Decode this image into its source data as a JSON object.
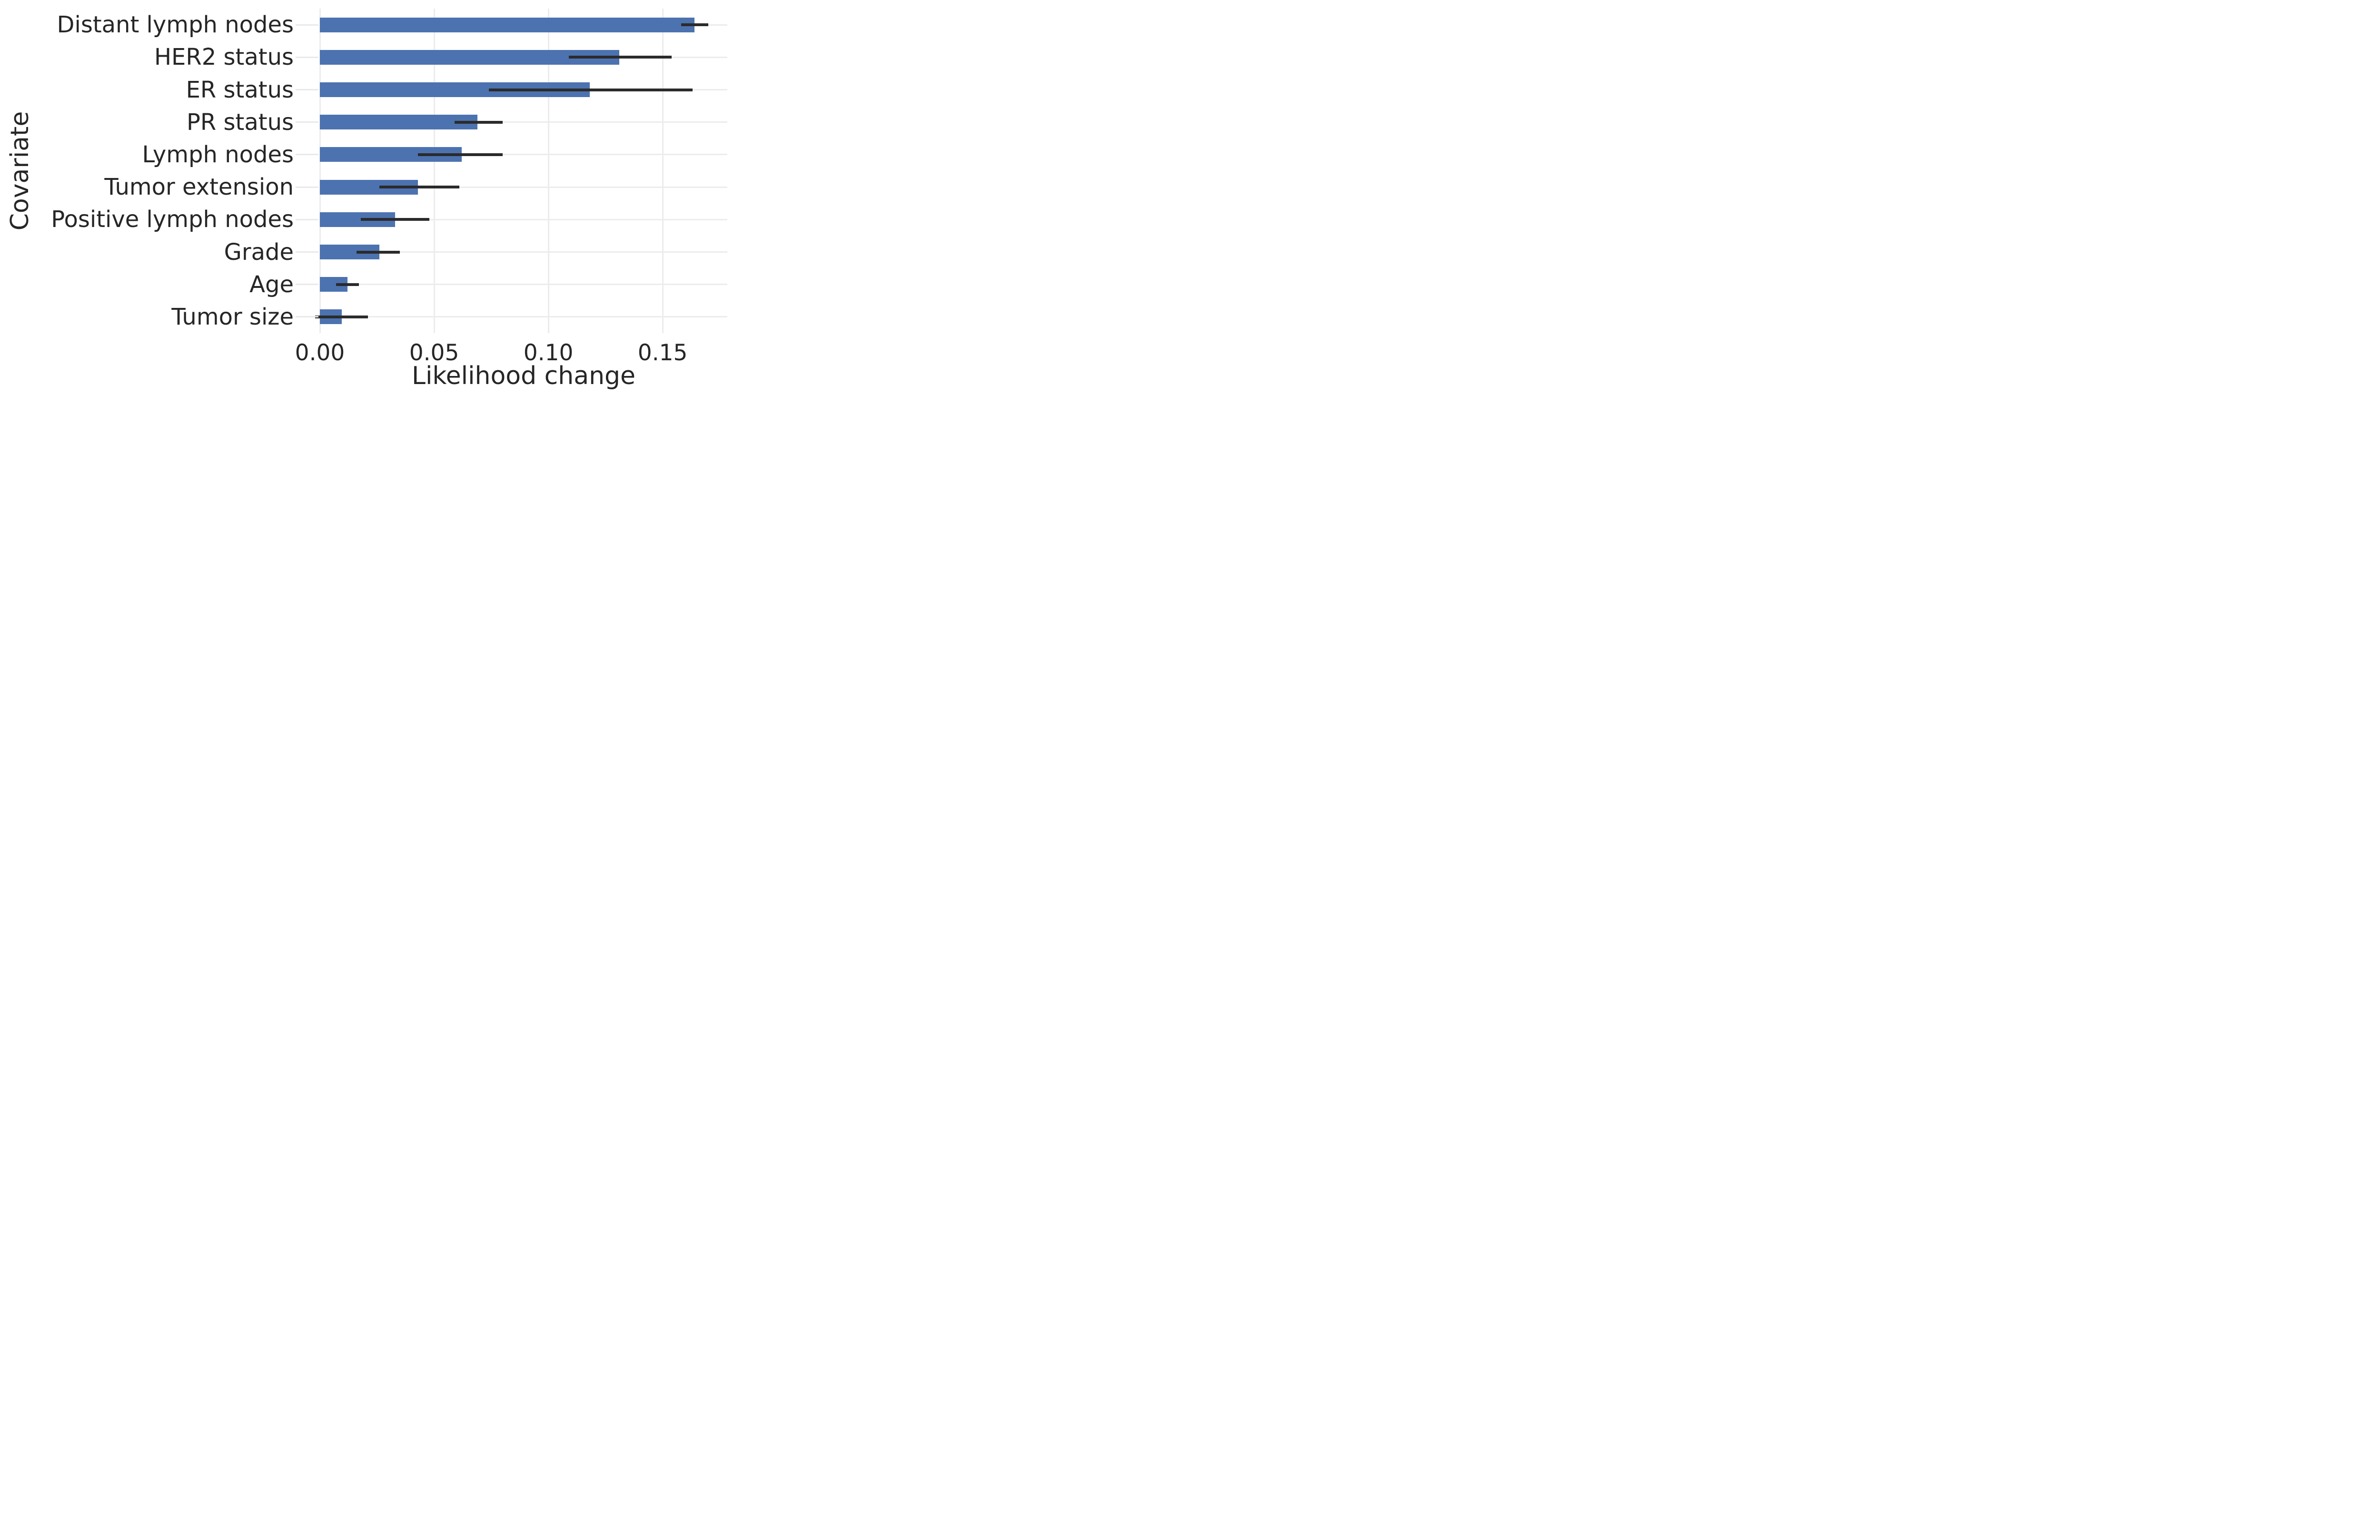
{
  "chart_data": {
    "type": "bar",
    "orientation": "horizontal",
    "xlabel": "Likelihood change",
    "ylabel": "Covariate",
    "categories": [
      "Distant lymph nodes",
      "HER2 status",
      "ER status",
      "PR status",
      "Lymph nodes",
      "Tumor extension",
      "Positive lymph nodes",
      "Grade",
      "Age",
      "Tumor size"
    ],
    "values": [
      0.164,
      0.131,
      0.118,
      0.069,
      0.062,
      0.043,
      0.033,
      0.026,
      0.012,
      0.0095
    ],
    "error_low": [
      0.158,
      0.109,
      0.074,
      0.059,
      0.043,
      0.026,
      0.018,
      0.016,
      0.007,
      -0.002
    ],
    "error_high": [
      0.17,
      0.154,
      0.163,
      0.08,
      0.08,
      0.061,
      0.048,
      0.035,
      0.017,
      0.021
    ],
    "x_tick_labels": [
      "0.00",
      "0.05",
      "0.10",
      "0.15"
    ],
    "x_tick_values": [
      0,
      0.05,
      0.1,
      0.15
    ],
    "xlim": [
      0,
      0.1783
    ],
    "grid": true,
    "legend": "none",
    "bar_color": "#4C72B0",
    "error_bar_color": "#2b2b2b",
    "grid_color": "#ececec",
    "tick_mark_color": "#e9e9e9",
    "text_color": "#262626",
    "background_color": "#ffffff"
  }
}
